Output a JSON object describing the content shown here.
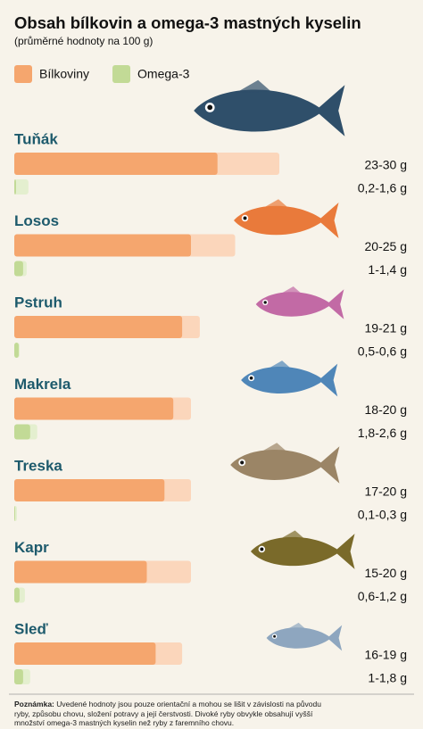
{
  "chart_data": {
    "type": "range-bar",
    "title": "Obsah bílkovin a omega-3 mastných kyselin",
    "subtitle": "(průměrné hodnoty na 100 g)",
    "categories": [
      "Tuňák",
      "Losos",
      "Pstruh",
      "Makrela",
      "Treska",
      "Kapr",
      "Sleď"
    ],
    "series": [
      {
        "name": "Bílkoviny",
        "color": "#f5a66e",
        "range_color": "#fbd6bb",
        "low": [
          23,
          20,
          19,
          18,
          17,
          15,
          16
        ],
        "high": [
          30,
          25,
          21,
          20,
          20,
          20,
          19
        ],
        "value_labels": [
          "23-30 g",
          "20-25 g",
          "19-21 g",
          "18-20 g",
          "17-20 g",
          "15-20 g",
          "16-19 g"
        ]
      },
      {
        "name": "Omega-3",
        "color": "#c2da96",
        "range_color": "#e4efcf",
        "low": [
          0.2,
          1,
          0.5,
          1.8,
          0.1,
          0.6,
          1
        ],
        "high": [
          1.6,
          1.4,
          0.6,
          2.6,
          0.3,
          1.2,
          1.8
        ],
        "value_labels": [
          "0,2-1,6 g",
          "1-1,4 g",
          "0,5-0,6 g",
          "1,8-2,6 g",
          "0,1-0,3 g",
          "0,6-1,2 g",
          "1-1,8 g"
        ]
      }
    ],
    "note_label": "Poznámka:",
    "note": "Uvedené hodnoty jsou pouze orientační a mohou se lišit v závislosti na původu ryby, způsobu chovu, složení potravy a její čerstvosti. Divoké ryby obvykle obsahují vyšší množství omega-3 mastných kyselin než ryby z faremního chovu."
  }
}
